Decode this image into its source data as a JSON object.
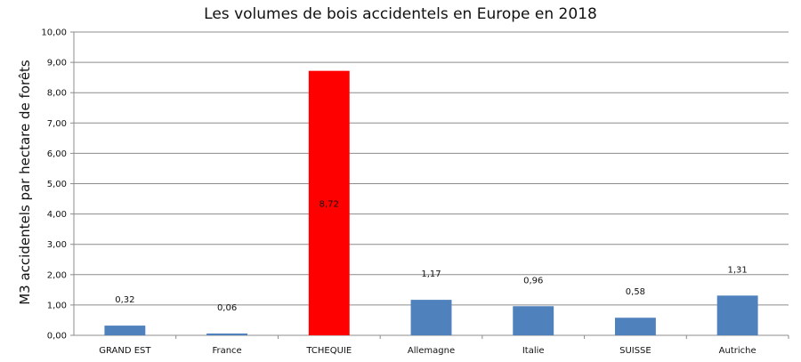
{
  "chart_data": {
    "type": "bar",
    "title": "Les volumes de bois accidentels en Europe en 2018",
    "xlabel": "",
    "ylabel": "M3 accidentels par hectare de forêts",
    "ylim": [
      0,
      10
    ],
    "yticks": [
      "0,00",
      "1,00",
      "2,00",
      "3,00",
      "4,00",
      "5,00",
      "6,00",
      "7,00",
      "8,00",
      "9,00",
      "10,00"
    ],
    "categories": [
      "GRAND EST",
      "France",
      "TCHEQUIE",
      "Allemagne",
      "Italie",
      "SUISSE",
      "Autriche"
    ],
    "values": [
      0.32,
      0.06,
      8.72,
      1.17,
      0.96,
      0.58,
      1.31
    ],
    "value_labels": [
      "0,32",
      "0,06",
      "8,72",
      "1,17",
      "0,96",
      "0,58",
      "1,31"
    ],
    "bar_colors": [
      "#4f81bd",
      "#4f81bd",
      "#ff0000",
      "#4f81bd",
      "#4f81bd",
      "#4f81bd",
      "#4f81bd"
    ],
    "grid": true,
    "legend": "none"
  }
}
